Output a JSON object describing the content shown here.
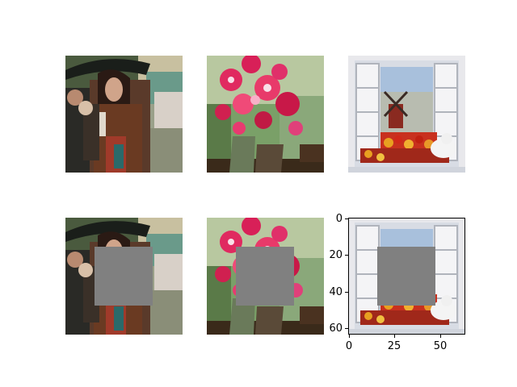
{
  "figure": {
    "panels": [
      {
        "row": 1,
        "col": 1,
        "subject": "woman with umbrella in rain",
        "masked": false
      },
      {
        "row": 1,
        "col": 2,
        "subject": "vase of pink flowers",
        "masked": false
      },
      {
        "row": 1,
        "col": 3,
        "subject": "window view with windmill and flowers",
        "masked": false
      },
      {
        "row": 2,
        "col": 1,
        "subject": "woman with umbrella in rain",
        "masked": true
      },
      {
        "row": 2,
        "col": 2,
        "subject": "vase of pink flowers",
        "masked": true
      },
      {
        "row": 2,
        "col": 3,
        "subject": "window view with windmill and flowers",
        "masked": true
      }
    ],
    "mask_color": "#808080",
    "mask_region": {
      "x": [
        16,
        48
      ],
      "y": [
        16,
        48
      ]
    },
    "axes": {
      "x_ticks": [
        "0",
        "25",
        "50"
      ],
      "y_ticks": [
        "0",
        "20",
        "40",
        "60"
      ],
      "xlim": [
        0,
        64
      ],
      "ylim": [
        64,
        0
      ]
    }
  }
}
